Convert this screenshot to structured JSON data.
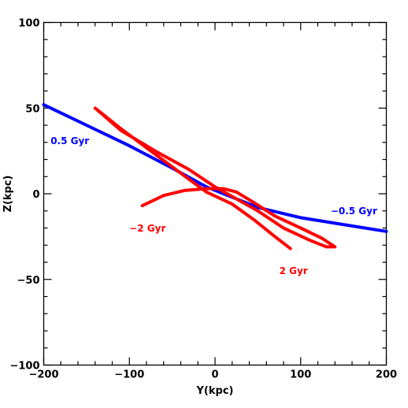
{
  "chart_data": {
    "type": "line",
    "title": "",
    "xlabel": "Y(kpc)",
    "ylabel": "Z(kpc)",
    "xlim": [
      -200,
      200
    ],
    "ylim": [
      -100,
      100
    ],
    "x_ticks": [
      "−200",
      "−100",
      "0",
      "100",
      "200"
    ],
    "y_ticks": [
      "−100",
      "−50",
      "0",
      "50",
      "100"
    ],
    "grid": false,
    "colors": {
      "blue": "#0000ff",
      "red": "#ff0000"
    },
    "annotations": [
      {
        "text": "0.5 Gyr",
        "color": "#0000ff",
        "x": -192,
        "y": 29
      },
      {
        "text": "−0.5 Gyr",
        "color": "#0000ff",
        "x": 135,
        "y": -12
      },
      {
        "text": "−2 Gyr",
        "color": "#ff0000",
        "x": -100,
        "y": -22
      },
      {
        "text": "2 Gyr",
        "color": "#ff0000",
        "x": 75,
        "y": -47
      }
    ],
    "series": [
      {
        "color": "#0000ff",
        "points": [
          [
            -200,
            52
          ],
          [
            -150,
            40
          ],
          [
            -100,
            28
          ],
          [
            -50,
            15
          ],
          [
            -10,
            4
          ],
          [
            0,
            2
          ],
          [
            25,
            -3
          ],
          [
            50,
            -8
          ],
          [
            100,
            -14
          ],
          [
            150,
            -18
          ],
          [
            200,
            -22
          ]
        ]
      },
      {
        "color": "#ff0000",
        "points": [
          [
            -85,
            -7
          ],
          [
            -60,
            -1
          ],
          [
            -35,
            2
          ],
          [
            -10,
            3
          ],
          [
            10,
            3
          ],
          [
            25,
            1
          ]
        ]
      },
      {
        "color": "#ff0000",
        "points": [
          [
            25,
            1
          ],
          [
            45,
            -5
          ],
          [
            70,
            -13
          ],
          [
            100,
            -20
          ],
          [
            125,
            -26
          ],
          [
            140,
            -31
          ],
          [
            130,
            -31
          ],
          [
            110,
            -27
          ],
          [
            80,
            -20
          ],
          [
            50,
            -10
          ],
          [
            25,
            -3
          ],
          [
            0,
            4
          ],
          [
            -30,
            14
          ],
          [
            -70,
            25
          ],
          [
            -110,
            37
          ],
          [
            -140,
            50
          ],
          [
            -135,
            48
          ],
          [
            -110,
            38
          ],
          [
            -75,
            25
          ],
          [
            -40,
            12
          ],
          [
            -10,
            1
          ],
          [
            20,
            -6
          ],
          [
            45,
            -15
          ],
          [
            70,
            -25
          ],
          [
            88,
            -32
          ]
        ]
      }
    ]
  }
}
